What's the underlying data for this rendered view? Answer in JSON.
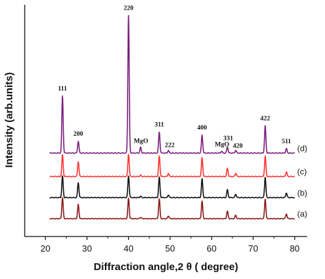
{
  "chart_data": {
    "type": "line",
    "title": "",
    "xlabel": "Diffraction angle,2 θ ( degree)",
    "ylabel": "Intensity (arb.units)",
    "xlim": [
      15,
      83
    ],
    "xticks": [
      20,
      30,
      40,
      50,
      60,
      70,
      80
    ],
    "ytick_labels": false,
    "grid": false,
    "legend": "none",
    "series": [
      {
        "name": "(a)",
        "color": "#8b1a1a",
        "baseline": 0.0,
        "peaks": [
          [
            24.1,
            0.62
          ],
          [
            27.9,
            0.42
          ],
          [
            40.0,
            0.6
          ],
          [
            42.9,
            0.04
          ],
          [
            47.4,
            0.58
          ],
          [
            49.6,
            0.08
          ],
          [
            57.7,
            0.52
          ],
          [
            63.8,
            0.22
          ],
          [
            65.8,
            0.1
          ],
          [
            72.9,
            0.58
          ],
          [
            78.0,
            0.14
          ]
        ]
      },
      {
        "name": "(b)",
        "color": "#111111",
        "baseline": 0.62,
        "peaks": [
          [
            24.1,
            0.63
          ],
          [
            27.9,
            0.44
          ],
          [
            40.0,
            0.64
          ],
          [
            42.9,
            0.04
          ],
          [
            47.4,
            0.6
          ],
          [
            49.6,
            0.08
          ],
          [
            57.7,
            0.55
          ],
          [
            63.8,
            0.23
          ],
          [
            65.8,
            0.1
          ],
          [
            72.9,
            0.6
          ],
          [
            78.0,
            0.14
          ]
        ]
      },
      {
        "name": "(c)",
        "color": "#ff3333",
        "baseline": 1.24,
        "peaks": [
          [
            24.1,
            0.64
          ],
          [
            27.9,
            0.44
          ],
          [
            40.0,
            0.66
          ],
          [
            42.9,
            0.04
          ],
          [
            47.4,
            0.6
          ],
          [
            49.6,
            0.09
          ],
          [
            57.7,
            0.55
          ],
          [
            63.8,
            0.24
          ],
          [
            65.8,
            0.1
          ],
          [
            72.9,
            0.6
          ],
          [
            78.0,
            0.14
          ]
        ]
      },
      {
        "name": "(d)",
        "color": "#7b1f7e",
        "baseline": 1.93,
        "peaks": [
          [
            24.1,
            1.68
          ],
          [
            27.9,
            0.35
          ],
          [
            40.0,
            4.05
          ],
          [
            42.9,
            0.17
          ],
          [
            47.4,
            0.62
          ],
          [
            49.6,
            0.07
          ],
          [
            57.7,
            0.53
          ],
          [
            62.4,
            0.05
          ],
          [
            63.8,
            0.18
          ],
          [
            65.8,
            0.08
          ],
          [
            72.9,
            0.8
          ],
          [
            78.0,
            0.13
          ]
        ]
      }
    ],
    "peak_labels": [
      {
        "text": "111",
        "x": 24.1
      },
      {
        "text": "200",
        "x": 27.9
      },
      {
        "text": "220",
        "x": 40.0
      },
      {
        "text": "MgO",
        "x": 43.0
      },
      {
        "text": "311",
        "x": 47.4
      },
      {
        "text": "222",
        "x": 49.9
      },
      {
        "text": "400",
        "x": 57.7
      },
      {
        "text": "MgO",
        "x": 62.5
      },
      {
        "text": "331",
        "x": 64.0
      },
      {
        "text": "420",
        "x": 66.3
      },
      {
        "text": "422",
        "x": 72.9
      },
      {
        "text": "511",
        "x": 78.0
      }
    ]
  }
}
